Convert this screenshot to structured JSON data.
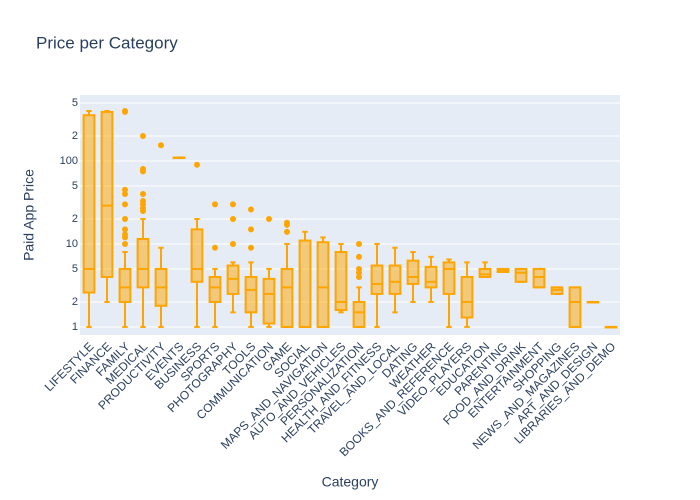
{
  "chart_data": {
    "type": "box",
    "title": "Price per Category",
    "x_label": "Category",
    "y_label": "Paid App Price",
    "log_y": true,
    "grid": true,
    "color": "#ffa500",
    "fill": "rgba(255,165,0,0.5)",
    "categories": [
      "LIFESTYLE",
      "FINANCE",
      "FAMILY",
      "MEDICAL",
      "PRODUCTIVITY",
      "EVENTS",
      "BUSINESS",
      "SPORTS",
      "PHOTOGRAPHY",
      "TOOLS",
      "COMMUNICATION",
      "GAME",
      "SOCIAL",
      "MAPS_AND_NAVIGATION",
      "AUTO_AND_VEHICLES",
      "PERSONALIZATION",
      "HEALTH_AND_FITNESS",
      "TRAVEL_AND_LOCAL",
      "DATING",
      "WEATHER",
      "BOOKS_AND_REFERENCE",
      "VIDEO_PLAYERS",
      "EDUCATION",
      "PARENTING",
      "FOOD_AND_DRINK",
      "ENTERTAINMENT",
      "SHOPPING",
      "NEWS_AND_MAGAZINES",
      "ART_AND_DESIGN",
      "LIBRARIES_AND_DEMO"
    ],
    "min": [
      1,
      2,
      1,
      1,
      1,
      110,
      1,
      1,
      1.5,
      1,
      1,
      1,
      1,
      1,
      1.5,
      1,
      1,
      1.5,
      2,
      2,
      1,
      1,
      4,
      4.6,
      3.5,
      3,
      2.5,
      1,
      2,
      1
    ],
    "q1": [
      2.6,
      4,
      2,
      3,
      1.8,
      110,
      3.5,
      2,
      2.5,
      1.5,
      1.1,
      1,
      1,
      1,
      1.6,
      1,
      2.5,
      2.5,
      3.3,
      3,
      2.5,
      1.3,
      4,
      4.6,
      3.5,
      3,
      2.5,
      1,
      2,
      1
    ],
    "median": [
      5,
      29,
      3,
      5,
      3,
      110,
      5,
      3,
      3.8,
      2.8,
      2.5,
      3,
      1,
      3,
      2,
      1.5,
      3.3,
      3.5,
      4,
      3.5,
      5,
      2,
      4.3,
      4.8,
      4.5,
      4,
      2.8,
      2,
      2,
      1
    ],
    "q3": [
      356,
      390,
      5,
      11.5,
      5,
      110,
      15,
      4,
      5.5,
      4,
      3.8,
      5,
      11,
      10.5,
      8,
      2,
      5.5,
      5.5,
      6.3,
      5.3,
      6,
      4,
      5,
      5,
      5,
      5,
      3,
      3,
      2,
      1
    ],
    "max": [
      400,
      400,
      8,
      20,
      9,
      110,
      20,
      5,
      6,
      6,
      5,
      10,
      14,
      12,
      10,
      3,
      10,
      9,
      8,
      7,
      6.5,
      6,
      6,
      5,
      5,
      5,
      3,
      3,
      2,
      1
    ],
    "outliers": [
      [],
      [],
      [
        400,
        390,
        45,
        40,
        30,
        20,
        15,
        13,
        12,
        10
      ],
      [
        200,
        80,
        75,
        40,
        33,
        30,
        27,
        25
      ],
      [
        155
      ],
      [],
      [
        90
      ],
      [
        9,
        30
      ],
      [
        10,
        20,
        30
      ],
      [
        9,
        15,
        26
      ],
      [
        20
      ],
      [
        14,
        17,
        18
      ],
      [],
      [],
      [],
      [
        4,
        4.5,
        5,
        7,
        10
      ],
      [],
      [],
      [],
      [],
      [],
      [],
      [],
      [],
      [],
      [],
      [],
      [],
      [],
      []
    ],
    "ylim": [
      0.8,
      624
    ],
    "yticks": [
      1,
      2,
      5,
      10,
      {
        "value": 20,
        "label": "2"
      },
      {
        "value": 50,
        "label": "5"
      },
      100,
      {
        "value": 200,
        "label": "2"
      },
      {
        "value": 500,
        "label": "5"
      }
    ]
  }
}
